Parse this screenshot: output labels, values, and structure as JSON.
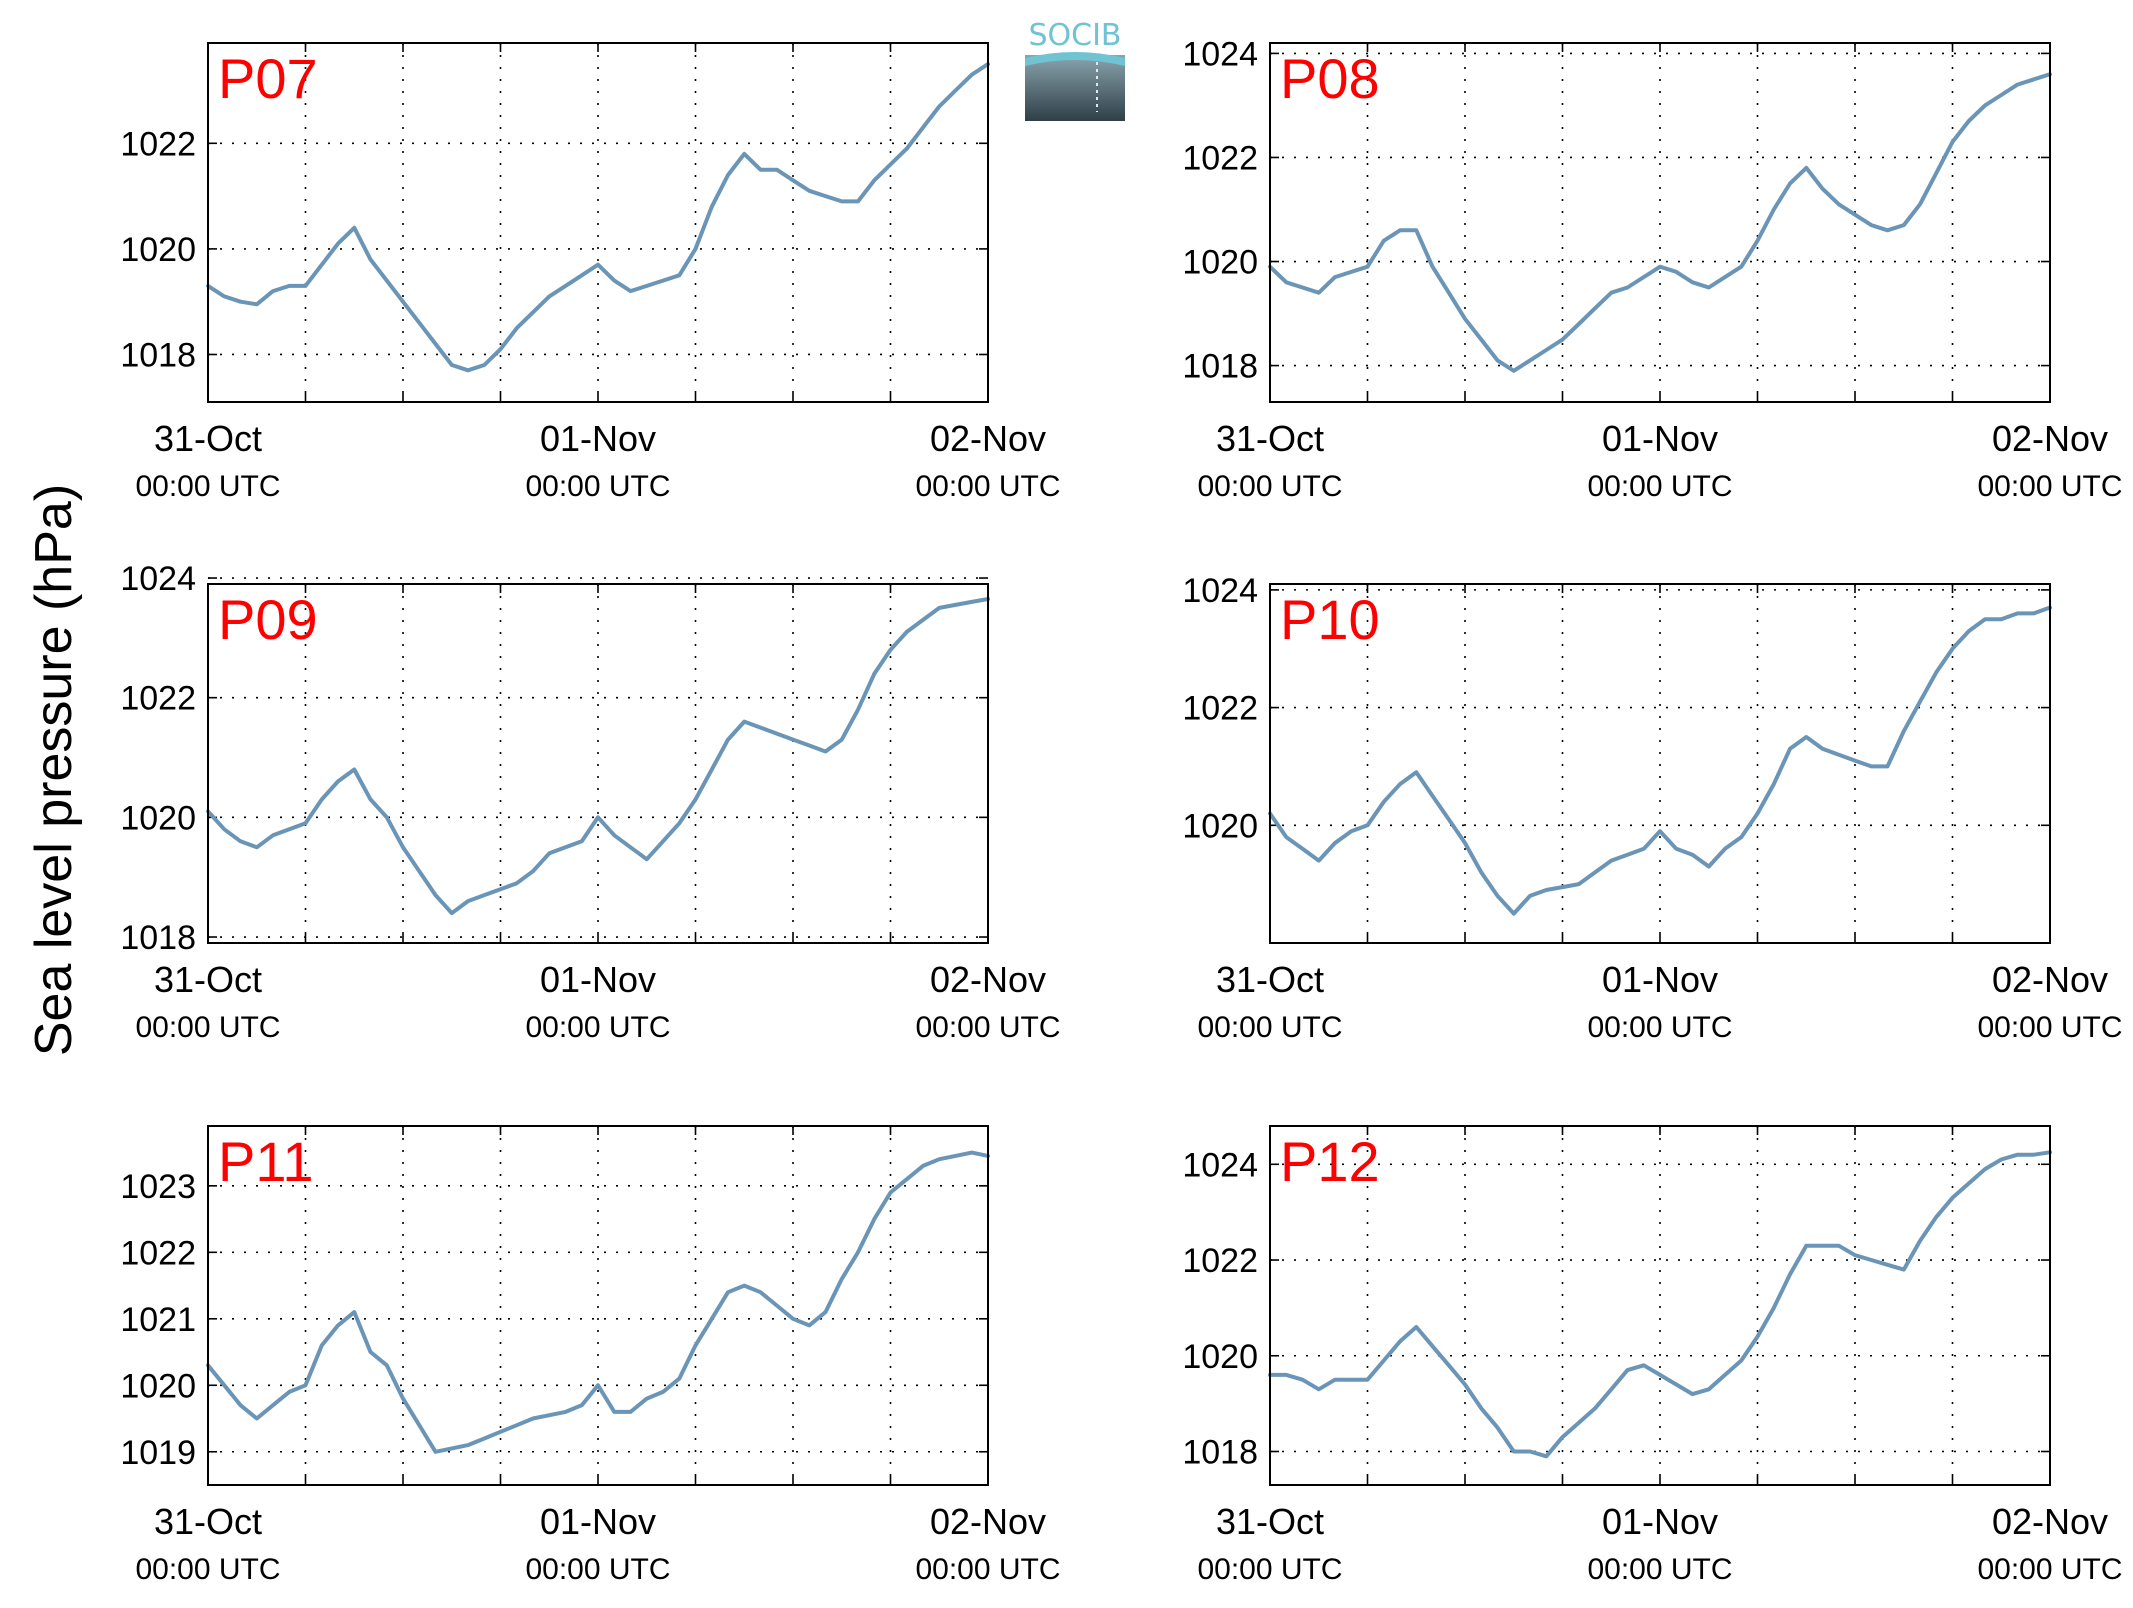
{
  "figure": {
    "ylabel": "Sea level pressure (hPa)"
  },
  "logo": {
    "text": "SOCIB",
    "colors": {
      "top": "#6fc3d3",
      "mid": "#8aa4ae",
      "bottom": "#2f3f47"
    }
  },
  "style": {
    "line_color": "#6b95b6",
    "label_color": "#ff0000",
    "axis_color": "#000000",
    "grid_color": "#000000"
  },
  "x_axis": {
    "range_hours": [
      0,
      48
    ],
    "ticks": [
      {
        "hour": 0,
        "date": "31-Oct",
        "time": "00:00 UTC"
      },
      {
        "hour": 24,
        "date": "01-Nov",
        "time": "00:00 UTC"
      },
      {
        "hour": 48,
        "date": "02-Nov",
        "time": "00:00 UTC"
      }
    ],
    "minor_grid_hours": [
      6,
      12,
      18,
      24,
      30,
      36,
      42
    ]
  },
  "chart_data": [
    {
      "type": "line",
      "station": "P07",
      "grid": true,
      "ylim": [
        1017.1,
        1023.9
      ],
      "yticks": [
        1018,
        1020,
        1022
      ],
      "x": [
        0,
        1,
        2,
        3,
        4,
        5,
        6,
        7,
        8,
        9,
        10,
        11,
        12,
        13,
        14,
        15,
        16,
        17,
        18,
        19,
        20,
        21,
        22,
        23,
        24,
        25,
        26,
        27,
        28,
        29,
        30,
        31,
        32,
        33,
        34,
        35,
        36,
        37,
        38,
        39,
        40,
        41,
        42,
        43,
        44,
        45,
        46,
        47,
        48
      ],
      "values": [
        1019.3,
        1019.1,
        1019.0,
        1018.95,
        1019.2,
        1019.3,
        1019.3,
        1019.7,
        1020.1,
        1020.4,
        1019.8,
        1019.4,
        1019.0,
        1018.6,
        1018.2,
        1017.8,
        1017.7,
        1017.8,
        1018.1,
        1018.5,
        1018.8,
        1019.1,
        1019.3,
        1019.5,
        1019.7,
        1019.4,
        1019.2,
        1019.3,
        1019.4,
        1019.5,
        1020.0,
        1020.8,
        1021.4,
        1021.8,
        1021.5,
        1021.5,
        1021.3,
        1021.1,
        1021.0,
        1020.9,
        1020.9,
        1021.3,
        1021.6,
        1021.9,
        1022.3,
        1022.7,
        1023.0,
        1023.3,
        1023.5
      ]
    },
    {
      "type": "line",
      "station": "P08",
      "grid": true,
      "ylim": [
        1017.3,
        1024.2
      ],
      "yticks": [
        1018,
        1020,
        1022,
        1024
      ],
      "x": [
        0,
        1,
        2,
        3,
        4,
        5,
        6,
        7,
        8,
        9,
        10,
        11,
        12,
        13,
        14,
        15,
        16,
        17,
        18,
        19,
        20,
        21,
        22,
        23,
        24,
        25,
        26,
        27,
        28,
        29,
        30,
        31,
        32,
        33,
        34,
        35,
        36,
        37,
        38,
        39,
        40,
        41,
        42,
        43,
        44,
        45,
        46,
        47,
        48
      ],
      "values": [
        1019.9,
        1019.6,
        1019.5,
        1019.4,
        1019.7,
        1019.8,
        1019.9,
        1020.4,
        1020.6,
        1020.6,
        1019.9,
        1019.4,
        1018.9,
        1018.5,
        1018.1,
        1017.9,
        1018.1,
        1018.3,
        1018.5,
        1018.8,
        1019.1,
        1019.4,
        1019.5,
        1019.7,
        1019.9,
        1019.8,
        1019.6,
        1019.5,
        1019.7,
        1019.9,
        1020.4,
        1021.0,
        1021.5,
        1021.8,
        1021.4,
        1021.1,
        1020.9,
        1020.7,
        1020.6,
        1020.7,
        1021.1,
        1021.7,
        1022.3,
        1022.7,
        1023.0,
        1023.2,
        1023.4,
        1023.5,
        1023.6
      ]
    },
    {
      "type": "line",
      "station": "P09",
      "grid": true,
      "ylim": [
        1017.9,
        1023.9
      ],
      "yticks": [
        1018,
        1020,
        1022,
        1024
      ],
      "x": [
        0,
        1,
        2,
        3,
        4,
        5,
        6,
        7,
        8,
        9,
        10,
        11,
        12,
        13,
        14,
        15,
        16,
        17,
        18,
        19,
        20,
        21,
        22,
        23,
        24,
        25,
        26,
        27,
        28,
        29,
        30,
        31,
        32,
        33,
        34,
        35,
        36,
        37,
        38,
        39,
        40,
        41,
        42,
        43,
        44,
        45,
        46,
        47,
        48
      ],
      "values": [
        1020.1,
        1019.8,
        1019.6,
        1019.5,
        1019.7,
        1019.8,
        1019.9,
        1020.3,
        1020.6,
        1020.8,
        1020.3,
        1020.0,
        1019.5,
        1019.1,
        1018.7,
        1018.4,
        1018.6,
        1018.7,
        1018.8,
        1018.9,
        1019.1,
        1019.4,
        1019.5,
        1019.6,
        1020.0,
        1019.7,
        1019.5,
        1019.3,
        1019.6,
        1019.9,
        1020.3,
        1020.8,
        1021.3,
        1021.6,
        1021.5,
        1021.4,
        1021.3,
        1021.2,
        1021.1,
        1021.3,
        1021.8,
        1022.4,
        1022.8,
        1023.1,
        1023.3,
        1023.5,
        1023.55,
        1023.6,
        1023.65
      ]
    },
    {
      "type": "line",
      "station": "P10",
      "grid": true,
      "ylim": [
        1018.0,
        1024.1
      ],
      "yticks": [
        1020,
        1022,
        1024
      ],
      "x": [
        0,
        1,
        2,
        3,
        4,
        5,
        6,
        7,
        8,
        9,
        10,
        11,
        12,
        13,
        14,
        15,
        16,
        17,
        18,
        19,
        20,
        21,
        22,
        23,
        24,
        25,
        26,
        27,
        28,
        29,
        30,
        31,
        32,
        33,
        34,
        35,
        36,
        37,
        38,
        39,
        40,
        41,
        42,
        43,
        44,
        45,
        46,
        47,
        48
      ],
      "values": [
        1020.2,
        1019.8,
        1019.6,
        1019.4,
        1019.7,
        1019.9,
        1020.0,
        1020.4,
        1020.7,
        1020.9,
        1020.5,
        1020.1,
        1019.7,
        1019.2,
        1018.8,
        1018.5,
        1018.8,
        1018.9,
        1018.95,
        1019.0,
        1019.2,
        1019.4,
        1019.5,
        1019.6,
        1019.9,
        1019.6,
        1019.5,
        1019.3,
        1019.6,
        1019.8,
        1020.2,
        1020.7,
        1021.3,
        1021.5,
        1021.3,
        1021.2,
        1021.1,
        1021.0,
        1021.0,
        1021.6,
        1022.1,
        1022.6,
        1023.0,
        1023.3,
        1023.5,
        1023.5,
        1023.6,
        1023.6,
        1023.7
      ]
    },
    {
      "type": "line",
      "station": "P11",
      "grid": true,
      "ylim": [
        1018.5,
        1023.9
      ],
      "yticks": [
        1019,
        1020,
        1021,
        1022,
        1023
      ],
      "x": [
        0,
        1,
        2,
        3,
        4,
        5,
        6,
        7,
        8,
        9,
        10,
        11,
        12,
        13,
        14,
        15,
        16,
        17,
        18,
        19,
        20,
        21,
        22,
        23,
        24,
        25,
        26,
        27,
        28,
        29,
        30,
        31,
        32,
        33,
        34,
        35,
        36,
        37,
        38,
        39,
        40,
        41,
        42,
        43,
        44,
        45,
        46,
        47,
        48
      ],
      "values": [
        1020.3,
        1020.0,
        1019.7,
        1019.5,
        1019.7,
        1019.9,
        1020.0,
        1020.6,
        1020.9,
        1021.1,
        1020.5,
        1020.3,
        1019.8,
        1019.4,
        1019.0,
        1019.05,
        1019.1,
        1019.2,
        1019.3,
        1019.4,
        1019.5,
        1019.55,
        1019.6,
        1019.7,
        1020.0,
        1019.6,
        1019.6,
        1019.8,
        1019.9,
        1020.1,
        1020.6,
        1021.0,
        1021.4,
        1021.5,
        1021.4,
        1021.2,
        1021.0,
        1020.9,
        1021.1,
        1021.6,
        1022.0,
        1022.5,
        1022.9,
        1023.1,
        1023.3,
        1023.4,
        1023.45,
        1023.5,
        1023.45
      ]
    },
    {
      "type": "line",
      "station": "P12",
      "grid": true,
      "ylim": [
        1017.3,
        1024.8
      ],
      "yticks": [
        1018,
        1020,
        1022,
        1024
      ],
      "x": [
        0,
        1,
        2,
        3,
        4,
        5,
        6,
        7,
        8,
        9,
        10,
        11,
        12,
        13,
        14,
        15,
        16,
        17,
        18,
        19,
        20,
        21,
        22,
        23,
        24,
        25,
        26,
        27,
        28,
        29,
        30,
        31,
        32,
        33,
        34,
        35,
        36,
        37,
        38,
        39,
        40,
        41,
        42,
        43,
        44,
        45,
        46,
        47,
        48
      ],
      "values": [
        1019.6,
        1019.6,
        1019.5,
        1019.3,
        1019.5,
        1019.5,
        1019.5,
        1019.9,
        1020.3,
        1020.6,
        1020.2,
        1019.8,
        1019.4,
        1018.9,
        1018.5,
        1018.0,
        1018.0,
        1017.9,
        1018.3,
        1018.6,
        1018.9,
        1019.3,
        1019.7,
        1019.8,
        1019.6,
        1019.4,
        1019.2,
        1019.3,
        1019.6,
        1019.9,
        1020.4,
        1021.0,
        1021.7,
        1022.3,
        1022.3,
        1022.3,
        1022.1,
        1022.0,
        1021.9,
        1021.8,
        1022.4,
        1022.9,
        1023.3,
        1023.6,
        1023.9,
        1024.1,
        1024.2,
        1024.2,
        1024.25
      ]
    }
  ]
}
